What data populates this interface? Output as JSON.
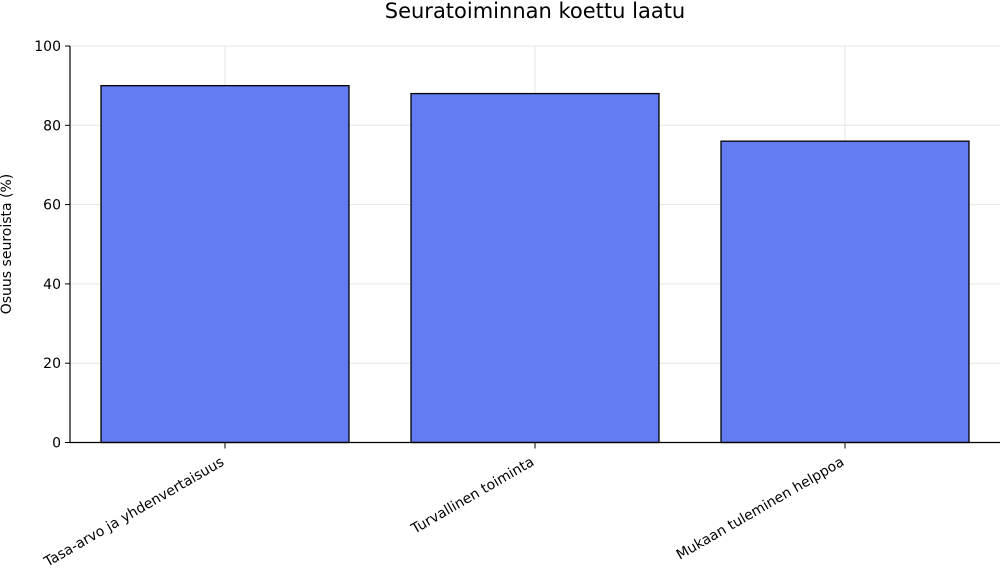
{
  "chart_data": {
    "type": "bar",
    "title": "Seuratoiminnan koettu laatu",
    "xlabel": "",
    "ylabel": "Osuus seuroista (%)",
    "categories": [
      "Tasa-arvo ja yhdenvertaisuus",
      "Turvallinen toiminta",
      "Mukaan tuleminen helppoa"
    ],
    "values": [
      90,
      88,
      76
    ],
    "ylim": [
      0,
      100
    ],
    "yticks": [
      "0",
      "20",
      "40",
      "60",
      "80",
      "100"
    ],
    "grid": true,
    "bar_color": "#647cf2"
  }
}
